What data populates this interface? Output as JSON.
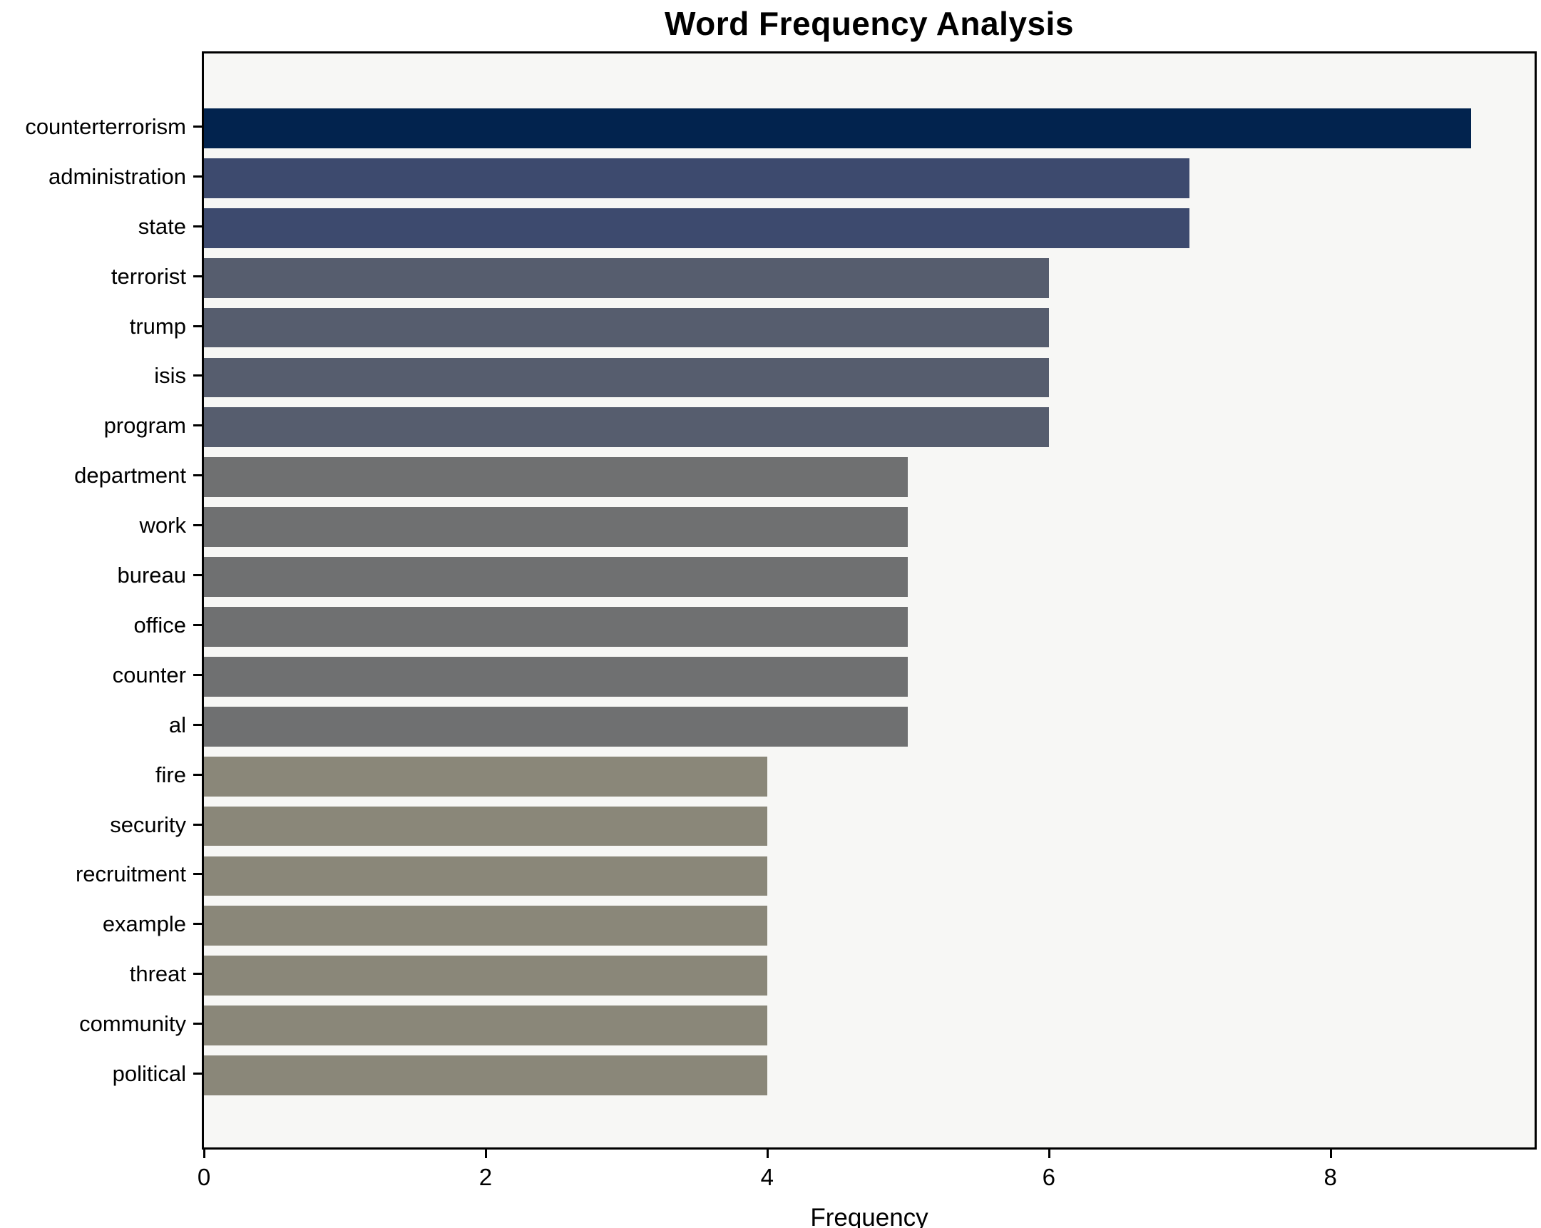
{
  "chart_data": {
    "type": "bar",
    "orientation": "horizontal",
    "title": "Word Frequency Analysis",
    "xlabel": "Frequency",
    "ylabel": "",
    "categories": [
      "counterterrorism",
      "administration",
      "state",
      "terrorist",
      "trump",
      "isis",
      "program",
      "department",
      "work",
      "bureau",
      "office",
      "counter",
      "al",
      "fire",
      "security",
      "recruitment",
      "example",
      "threat",
      "community",
      "political"
    ],
    "values": [
      9,
      7,
      7,
      6,
      6,
      6,
      6,
      5,
      5,
      5,
      5,
      5,
      5,
      4,
      4,
      4,
      4,
      4,
      4,
      4
    ],
    "bar_colors": [
      "#02234e",
      "#3d4a6e",
      "#3d4a6e",
      "#565d6e",
      "#565d6e",
      "#565d6e",
      "#565d6e",
      "#6f7071",
      "#6f7071",
      "#6f7071",
      "#6f7071",
      "#6f7071",
      "#6f7071",
      "#8a8779",
      "#8a8779",
      "#8a8779",
      "#8a8779",
      "#8a8779",
      "#8a8779",
      "#8a8779"
    ],
    "x_ticks": [
      0,
      2,
      4,
      6,
      8
    ],
    "xlim": [
      0,
      9.45
    ],
    "grid": false,
    "legend": null,
    "colors": {
      "plot_bg": "#f7f7f5",
      "figure_bg": "#ffffff",
      "axis": "#000000",
      "text": "#000000"
    }
  }
}
